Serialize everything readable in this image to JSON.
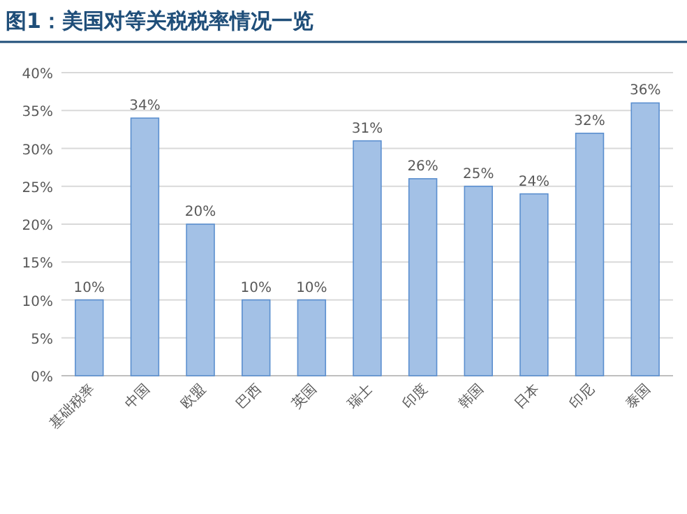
{
  "chart_data": {
    "type": "bar",
    "title": "图1：美国对等关税税率情况一览",
    "categories": [
      "基础税率",
      "中国",
      "欧盟",
      "巴西",
      "英国",
      "瑞士",
      "印度",
      "韩国",
      "日本",
      "印尼",
      "泰国"
    ],
    "values": [
      10,
      34,
      20,
      10,
      10,
      31,
      26,
      25,
      24,
      32,
      36
    ],
    "value_labels": [
      "10%",
      "34%",
      "20%",
      "10%",
      "10%",
      "31%",
      "26%",
      "25%",
      "24%",
      "32%",
      "36%"
    ],
    "color": "#a3c1e6",
    "ylim": [
      0,
      40
    ],
    "yticks": [
      {
        "value": 0,
        "label": "0%"
      },
      {
        "value": 5,
        "label": "5%"
      },
      {
        "value": 10,
        "label": "10%"
      },
      {
        "value": 15,
        "label": "15%"
      },
      {
        "value": 20,
        "label": "20%"
      },
      {
        "value": 25,
        "label": "25%"
      },
      {
        "value": 30,
        "label": "30%"
      },
      {
        "value": 35,
        "label": "35%"
      },
      {
        "value": 40,
        "label": "40%"
      }
    ],
    "grid": "y"
  }
}
